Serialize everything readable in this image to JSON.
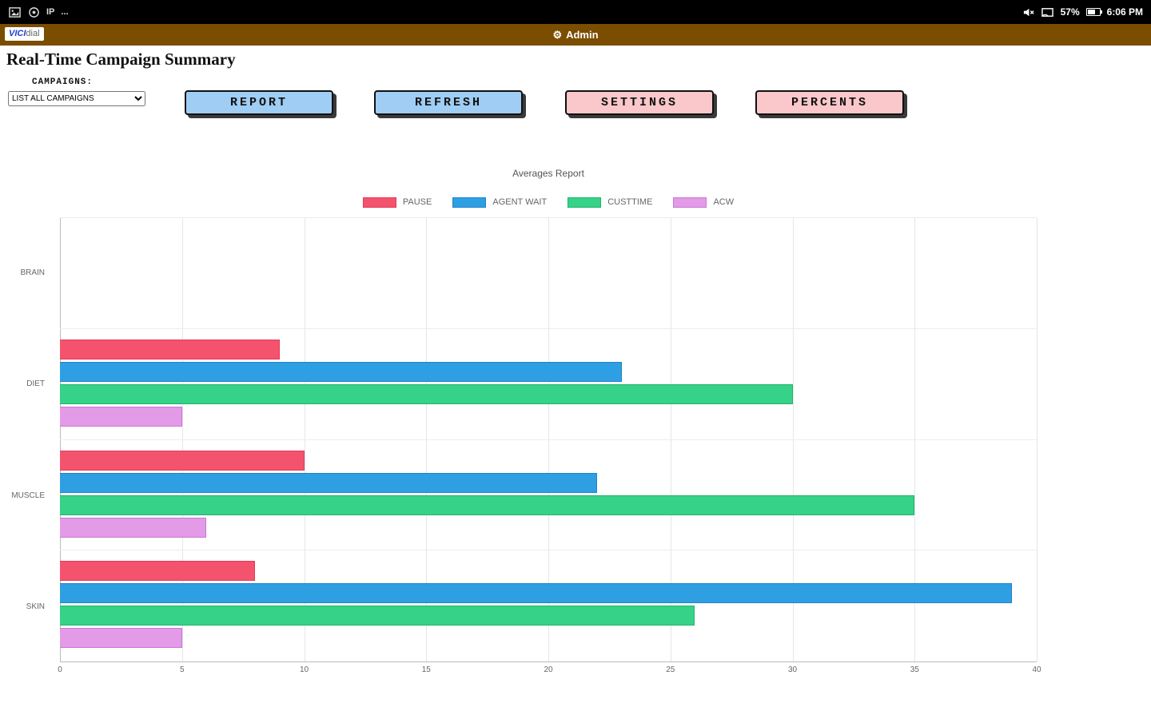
{
  "status_bar": {
    "time": "6:06 PM",
    "battery_percent": "57%",
    "left_icons": [
      "screenshot-icon",
      "record-icon",
      "ip-icon",
      "overflow-icon"
    ],
    "right_icons": [
      "mute-icon",
      "cast-icon",
      "battery-icon"
    ],
    "overflow_text": "..."
  },
  "app_bar": {
    "logo_vici": "VICI",
    "logo_dial": "dial",
    "gear_icon": "gear-icon",
    "title": "Admin",
    "background": "#7A4D00"
  },
  "page": {
    "title": "Real-Time Campaign Summary",
    "campaigns_label": "CAMPAIGNS:",
    "campaigns_selected": "LIST ALL CAMPAIGNS",
    "buttons": [
      {
        "label": "REPORT",
        "color": "#9FCDF3"
      },
      {
        "label": "REFRESH",
        "color": "#9FCDF3"
      },
      {
        "label": "SETTINGS",
        "color": "#FAC7CA"
      },
      {
        "label": "PERCENTS",
        "color": "#FAC7CA"
      }
    ]
  },
  "chart_data": {
    "type": "bar",
    "orientation": "horizontal",
    "title": "Averages Report",
    "categories": [
      "BRAIN",
      "DIET",
      "MUSCLE",
      "SKIN"
    ],
    "series": [
      {
        "name": "PAUSE",
        "color": "#F4536E",
        "border": "#E23B59",
        "values": [
          0,
          9,
          10,
          8
        ]
      },
      {
        "name": "AGENT WAIT",
        "color": "#2F9FE3",
        "border": "#1E83C8",
        "values": [
          0,
          23,
          22,
          39
        ]
      },
      {
        "name": "CUSTTIME",
        "color": "#35D287",
        "border": "#1FB56C",
        "values": [
          0,
          30,
          35,
          26
        ]
      },
      {
        "name": "ACW",
        "color": "#E39BE8",
        "border": "#C977D1",
        "values": [
          0,
          5,
          6,
          5
        ]
      }
    ],
    "xlim": [
      0,
      40
    ],
    "x_ticks": [
      0,
      5,
      10,
      15,
      20,
      25,
      30,
      35,
      40
    ],
    "grid": true,
    "legend_position": "top"
  }
}
